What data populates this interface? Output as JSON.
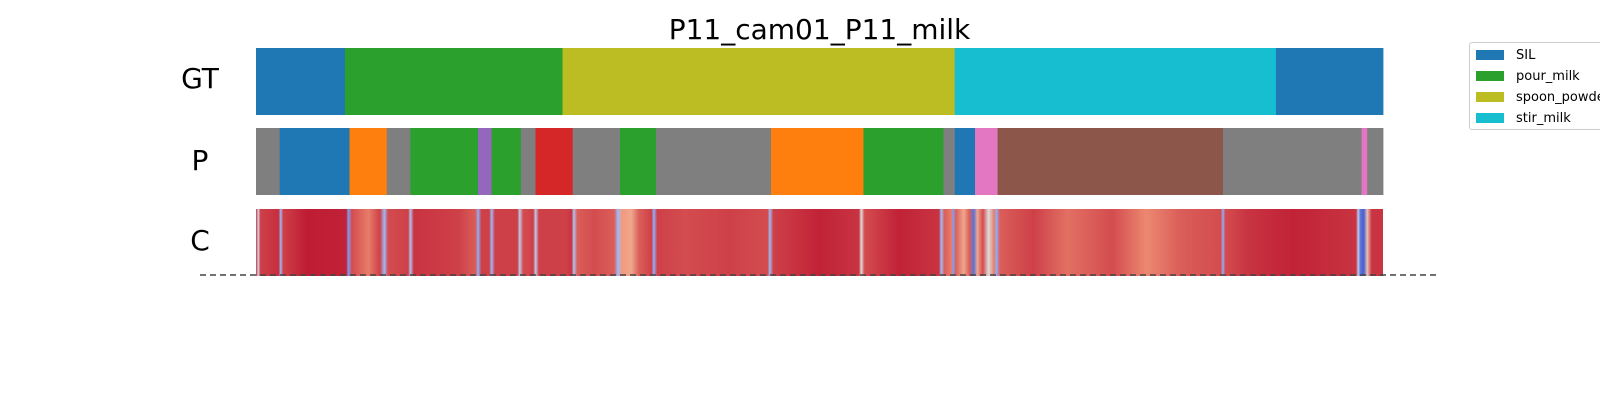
{
  "chart_data": {
    "type": "segmentation-timeline",
    "title": "P11_cam01_P11_milk",
    "frame_range": [
      0,
      1000
    ],
    "rows": [
      {
        "label": "GT",
        "segments": [
          {
            "start": 0,
            "end": 79,
            "color": "#1f77b4"
          },
          {
            "start": 79,
            "end": 272,
            "color": "#2ca02c"
          },
          {
            "start": 272,
            "end": 620,
            "color": "#bcbd22"
          },
          {
            "start": 620,
            "end": 905,
            "color": "#17becf"
          },
          {
            "start": 905,
            "end": 1000,
            "color": "#1f77b4"
          }
        ]
      },
      {
        "label": "P",
        "segments": [
          {
            "start": 0,
            "end": 21,
            "color": "#7f7f7f"
          },
          {
            "start": 21,
            "end": 83,
            "color": "#1f77b4"
          },
          {
            "start": 83,
            "end": 116,
            "color": "#ff7f0e"
          },
          {
            "start": 116,
            "end": 137,
            "color": "#7f7f7f"
          },
          {
            "start": 137,
            "end": 197,
            "color": "#2ca02c"
          },
          {
            "start": 197,
            "end": 209,
            "color": "#9467bd"
          },
          {
            "start": 209,
            "end": 235,
            "color": "#2ca02c"
          },
          {
            "start": 235,
            "end": 248,
            "color": "#7f7f7f"
          },
          {
            "start": 248,
            "end": 281,
            "color": "#d62728"
          },
          {
            "start": 281,
            "end": 323,
            "color": "#7f7f7f"
          },
          {
            "start": 323,
            "end": 355,
            "color": "#2ca02c"
          },
          {
            "start": 355,
            "end": 457,
            "color": "#7f7f7f"
          },
          {
            "start": 457,
            "end": 539,
            "color": "#ff7f0e"
          },
          {
            "start": 539,
            "end": 610,
            "color": "#2ca02c"
          },
          {
            "start": 610,
            "end": 620,
            "color": "#7f7f7f"
          },
          {
            "start": 620,
            "end": 638,
            "color": "#1f77b4"
          },
          {
            "start": 638,
            "end": 658,
            "color": "#e377c2"
          },
          {
            "start": 658,
            "end": 858,
            "color": "#8c564b"
          },
          {
            "start": 858,
            "end": 981,
            "color": "#7f7f7f"
          },
          {
            "start": 981,
            "end": 986,
            "color": "#e377c2"
          },
          {
            "start": 986,
            "end": 1000,
            "color": "#7f7f7f"
          }
        ]
      },
      {
        "label": "C",
        "colormap": "coolwarm",
        "confidence_keypoints": [
          [
            0,
            0.92
          ],
          [
            2,
            0.45
          ],
          [
            4,
            0.9
          ],
          [
            20,
            0.93
          ],
          [
            22,
            0.3
          ],
          [
            24,
            0.9
          ],
          [
            45,
            0.96
          ],
          [
            80,
            0.95
          ],
          [
            82,
            0.2
          ],
          [
            85,
            0.88
          ],
          [
            100,
            0.8
          ],
          [
            110,
            0.9
          ],
          [
            114,
            0.3
          ],
          [
            117,
            0.88
          ],
          [
            135,
            0.9
          ],
          [
            137,
            0.35
          ],
          [
            140,
            0.92
          ],
          [
            180,
            0.9
          ],
          [
            195,
            0.85
          ],
          [
            197,
            0.25
          ],
          [
            200,
            0.9
          ],
          [
            207,
            0.9
          ],
          [
            209,
            0.3
          ],
          [
            212,
            0.9
          ],
          [
            232,
            0.9
          ],
          [
            234,
            0.4
          ],
          [
            237,
            0.88
          ],
          [
            246,
            0.9
          ],
          [
            248,
            0.4
          ],
          [
            251,
            0.9
          ],
          [
            275,
            0.9
          ],
          [
            280,
            0.92
          ],
          [
            282,
            0.35
          ],
          [
            285,
            0.85
          ],
          [
            300,
            0.88
          ],
          [
            318,
            0.85
          ],
          [
            321,
            0.3
          ],
          [
            325,
            0.75
          ],
          [
            333,
            0.7
          ],
          [
            340,
            0.85
          ],
          [
            351,
            0.9
          ],
          [
            353,
            0.25
          ],
          [
            356,
            0.9
          ],
          [
            380,
            0.88
          ],
          [
            420,
            0.9
          ],
          [
            454,
            0.88
          ],
          [
            456,
            0.3
          ],
          [
            459,
            0.9
          ],
          [
            500,
            0.95
          ],
          [
            535,
            0.92
          ],
          [
            537,
            0.5
          ],
          [
            540,
            0.88
          ],
          [
            570,
            0.95
          ],
          [
            606,
            0.92
          ],
          [
            608,
            0.3
          ],
          [
            611,
            0.85
          ],
          [
            617,
            0.8
          ],
          [
            619,
            0.2
          ],
          [
            621,
            0.85
          ],
          [
            628,
            0.7
          ],
          [
            633,
            0.85
          ],
          [
            637,
            0.1
          ],
          [
            640,
            0.7
          ],
          [
            645,
            0.88
          ],
          [
            650,
            0.5
          ],
          [
            655,
            0.8
          ],
          [
            657,
            0.25
          ],
          [
            660,
            0.85
          ],
          [
            690,
            0.9
          ],
          [
            720,
            0.82
          ],
          [
            760,
            0.88
          ],
          [
            790,
            0.78
          ],
          [
            820,
            0.85
          ],
          [
            856,
            0.88
          ],
          [
            858,
            0.25
          ],
          [
            860,
            0.88
          ],
          [
            880,
            0.92
          ],
          [
            920,
            0.95
          ],
          [
            976,
            0.92
          ],
          [
            978,
            0.4
          ],
          [
            980,
            0.1
          ],
          [
            983,
            0.05
          ],
          [
            986,
            0.6
          ],
          [
            990,
            0.92
          ],
          [
            1000,
            0.92
          ]
        ]
      }
    ],
    "legend": {
      "position": "right",
      "entries": [
        {
          "label": "SIL",
          "color": "#1f77b4"
        },
        {
          "label": "pour_milk",
          "color": "#2ca02c"
        },
        {
          "label": "spoon_powder",
          "color": "#bcbd22"
        },
        {
          "label": "stir_milk",
          "color": "#17becf"
        }
      ]
    },
    "separator": "dashed",
    "grid": false
  }
}
